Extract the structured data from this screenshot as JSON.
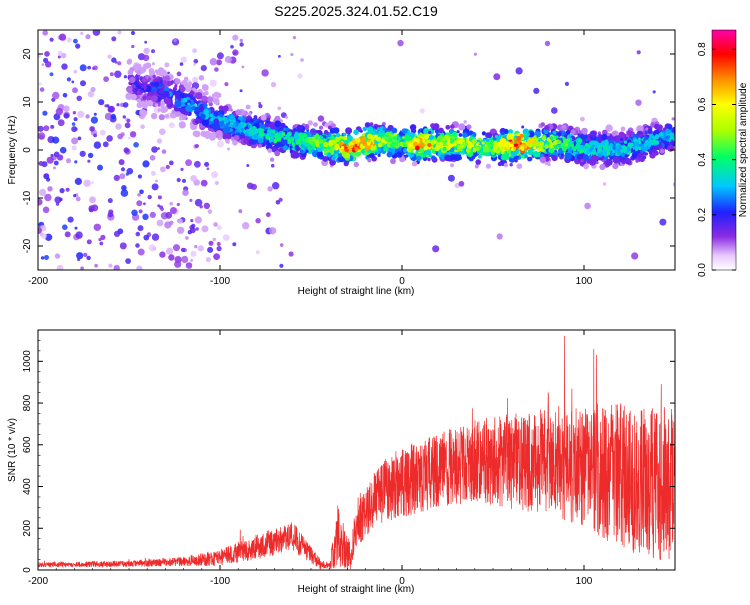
{
  "title": "S225.2025.324.01.52.C19",
  "colors": {
    "snr_line": "#ee2b2b",
    "axis": "#000000"
  },
  "chart_data": [
    {
      "type": "heatmap",
      "xlabel": "Height of straight line (km)",
      "ylabel": "Frequency (Hz)",
      "xlim": [
        -200,
        150
      ],
      "ylim": [
        -25,
        25
      ],
      "xticks": [
        -200,
        -100,
        0,
        100
      ],
      "xtick_labels": [
        "-200",
        "-100",
        "0",
        "100"
      ],
      "yticks": [
        -20,
        -10,
        0,
        10,
        20
      ],
      "ytick_labels": [
        "-20",
        "-10",
        "0",
        "10",
        "20"
      ],
      "colorbar": {
        "label": "Normalized spectral amplitude",
        "range": [
          0,
          0.87
        ],
        "ticks": [
          0.0,
          0.2,
          0.4,
          0.6,
          0.8
        ],
        "tick_labels": [
          "0.0",
          "0.2",
          "0.4",
          "0.6",
          "0.8"
        ]
      },
      "ridge": {
        "x": [
          -200,
          -150,
          -130,
          -120,
          -110,
          -100,
          -80,
          -60,
          -40,
          -30,
          -20,
          -10,
          0,
          10,
          20,
          40,
          50,
          60,
          80,
          100,
          120,
          150
        ],
        "freq": [
          15,
          14,
          12,
          10,
          8,
          6,
          4,
          2,
          1,
          0.5,
          1.5,
          2,
          1.5,
          1,
          1.5,
          1,
          0.5,
          1,
          1.5,
          0.5,
          0,
          3
        ],
        "peak_amplitude": [
          0.15,
          0.2,
          0.3,
          0.35,
          0.35,
          0.35,
          0.4,
          0.45,
          0.55,
          0.85,
          0.8,
          0.6,
          0.5,
          0.85,
          0.6,
          0.6,
          0.5,
          0.85,
          0.55,
          0.4,
          0.4,
          0.35
        ]
      }
    },
    {
      "type": "line",
      "xlabel": "Height of straight line (km)",
      "ylabel": "SNR (10 * v/v)",
      "xlim": [
        -200,
        150
      ],
      "ylim": [
        0,
        1150
      ],
      "xticks": [
        -200,
        -100,
        0,
        100
      ],
      "xtick_labels": [
        "-200",
        "-100",
        "0",
        "100"
      ],
      "yticks": [
        0,
        200,
        400,
        600,
        800,
        1000
      ],
      "ytick_labels": [
        "0",
        "200",
        "400",
        "600",
        "800",
        "1000"
      ],
      "series": [
        {
          "name": "SNR",
          "x": [
            -200,
            -150,
            -120,
            -100,
            -80,
            -60,
            -45,
            -40,
            -35,
            -28,
            -25,
            -20,
            -10,
            0,
            20,
            40,
            60,
            80,
            100,
            120,
            150
          ],
          "mean": [
            25,
            30,
            40,
            60,
            110,
            160,
            30,
            20,
            150,
            60,
            230,
            280,
            380,
            420,
            480,
            520,
            520,
            520,
            500,
            450,
            400
          ],
          "amp": [
            12,
            15,
            22,
            40,
            60,
            70,
            25,
            15,
            150,
            60,
            120,
            130,
            150,
            170,
            180,
            200,
            230,
            260,
            300,
            350,
            380
          ]
        }
      ]
    }
  ]
}
